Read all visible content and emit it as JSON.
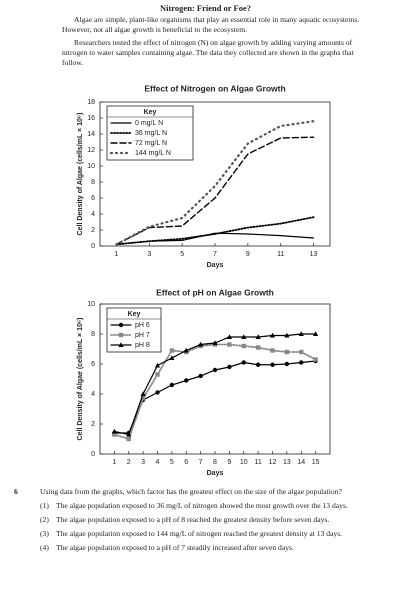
{
  "header": {
    "title": "Nitrogen: Friend or Foe?"
  },
  "paragraphs": [
    "Algae are simple, plant-like organisms that play an essential role in many aquatic ecosystems. However, not all algae growth is beneficial to the ecosystem.",
    "Researchers tested the effect of nitrogen (N) on algae growth by adding varying amounts of nitrogen to water samples containing algae. The data they collected are shown in the graphs that follow."
  ],
  "chart_data": [
    {
      "type": "line",
      "title": "Effect of Nitrogen on Algae Growth",
      "x_label": "Days",
      "y_label": "Cell Density of Algae (cells/mL × 10⁶)",
      "legend_title": "Key",
      "x": [
        1,
        3,
        5,
        7,
        9,
        11,
        13
      ],
      "xlim": [
        0,
        14
      ],
      "xticks": [
        1,
        3,
        5,
        7,
        9,
        11,
        13
      ],
      "ylim": [
        0,
        18
      ],
      "yticks": [
        0,
        2,
        4,
        6,
        8,
        10,
        12,
        14,
        16,
        18
      ],
      "series": [
        {
          "name": "0 mg/L N",
          "color": "#000000",
          "style": "solid",
          "values": [
            0.2,
            0.6,
            0.7,
            1.6,
            1.5,
            1.3,
            1.0
          ]
        },
        {
          "name": "36 mg/L N",
          "color": "#000000",
          "style": "dotted",
          "values": [
            0.2,
            0.6,
            0.9,
            1.5,
            2.3,
            2.8,
            3.6
          ]
        },
        {
          "name": "72 mg/L N",
          "color": "#000000",
          "style": "dashed",
          "values": [
            0.2,
            2.3,
            2.5,
            6.0,
            11.5,
            13.5,
            13.6
          ]
        },
        {
          "name": "144 mg/L N",
          "color": "#555555",
          "style": "sparse",
          "values": [
            0.2,
            2.4,
            3.5,
            7.5,
            12.8,
            15.0,
            15.6
          ]
        }
      ]
    },
    {
      "type": "line",
      "title": "Effect of pH on Algae Growth",
      "x_label": "Days",
      "y_label": "Cell Density of Algae (cells/mL × 10⁶)",
      "legend_title": "Key",
      "x": [
        1,
        2,
        3,
        4,
        5,
        6,
        7,
        8,
        9,
        10,
        11,
        12,
        13,
        14,
        15
      ],
      "xlim": [
        0,
        16
      ],
      "xticks": [
        1,
        2,
        3,
        4,
        5,
        6,
        7,
        8,
        9,
        10,
        11,
        12,
        13,
        14,
        15
      ],
      "ylim": [
        0,
        10
      ],
      "yticks": [
        0,
        2,
        4,
        6,
        8,
        10
      ],
      "series": [
        {
          "name": "pH 6",
          "color": "#000000",
          "style": "solid",
          "marker": "circle",
          "values": [
            1.4,
            1.4,
            3.6,
            4.1,
            4.6,
            4.9,
            5.2,
            5.6,
            5.8,
            6.1,
            5.95,
            5.95,
            6.0,
            6.1,
            6.2
          ]
        },
        {
          "name": "pH 7",
          "color": "#888888",
          "style": "dotted",
          "marker": "square",
          "values": [
            1.3,
            1.0,
            3.7,
            5.3,
            6.9,
            6.8,
            7.2,
            7.3,
            7.3,
            7.2,
            7.1,
            6.9,
            6.8,
            6.8,
            6.3
          ]
        },
        {
          "name": "pH 8",
          "color": "#000000",
          "style": "solid",
          "marker": "triangle",
          "values": [
            1.5,
            1.3,
            4.0,
            5.9,
            6.4,
            6.9,
            7.3,
            7.4,
            7.8,
            7.8,
            7.8,
            7.9,
            7.9,
            8.0,
            8.0
          ]
        }
      ]
    }
  ],
  "question": {
    "number": "6",
    "text": "Using data from the graphs, which factor has the greatest effect on the size of the algae population?",
    "options": [
      {
        "label": "(1)",
        "text": "The algae population exposed to 36 mg/L of nitrogen showed the most growth over the 13 days."
      },
      {
        "label": "(2)",
        "text": "The algae population exposed to a pH of 8 reached the greatest density before seven days."
      },
      {
        "label": "(3)",
        "text": "The algae population exposed to 144 mg/L of nitrogen reached the greatest density at 13 days."
      },
      {
        "label": "(4)",
        "text": "The algae population exposed to a pH of 7 steadily increased after seven days."
      }
    ]
  }
}
